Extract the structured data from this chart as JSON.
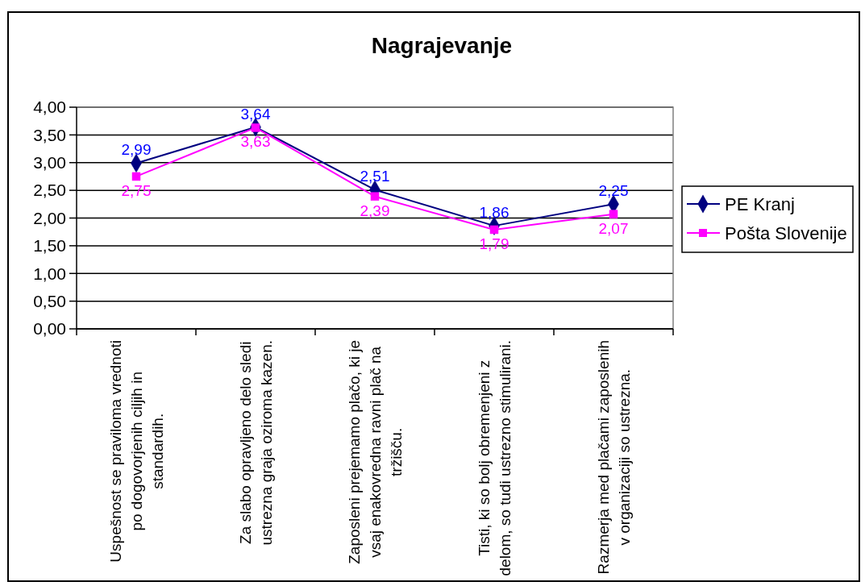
{
  "chart_data": {
    "type": "line",
    "title": "Nagrajevanje",
    "categories": [
      "Uspešnost se praviloma vrednoti po dogovorjenih ciljih in standardih.",
      "Za slabo opravljeno delo sledi ustrezna graja oziroma kazen.",
      "Zaposleni prejemamo plačo, ki je vsaj enakovredna ravni plač na tržišču.",
      "Tisti, ki so bolj obremenjeni z delom, so tudi ustrezno stimulirani.",
      "Razmerja med plačami zaposlenih v organizaciji so ustrezna."
    ],
    "series": [
      {
        "name": "PE Kranj",
        "color": "#000080",
        "marker": "diamond",
        "values": [
          2.99,
          3.64,
          2.51,
          1.86,
          2.25
        ],
        "value_labels": [
          "2,99",
          "3,64",
          "2,51",
          "1,86",
          "2,25"
        ]
      },
      {
        "name": "Pošta Slovenije",
        "color": "#ff00ff",
        "marker": "square",
        "values": [
          2.75,
          3.63,
          2.39,
          1.79,
          2.07
        ],
        "value_labels": [
          "2,75",
          "3,63",
          "2,39",
          "1,79",
          "2,07"
        ]
      }
    ],
    "ylim": [
      0,
      4
    ],
    "yticks": [
      {
        "value": 0,
        "label": "0,00"
      },
      {
        "value": 0.5,
        "label": "0,50"
      },
      {
        "value": 1,
        "label": "1,00"
      },
      {
        "value": 1.5,
        "label": "1,50"
      },
      {
        "value": 2,
        "label": "2,00"
      },
      {
        "value": 2.5,
        "label": "2,50"
      },
      {
        "value": 3,
        "label": "3,00"
      },
      {
        "value": 3.5,
        "label": "3,50"
      },
      {
        "value": 4,
        "label": "4,00"
      }
    ],
    "grid": "y",
    "legend": "right"
  }
}
